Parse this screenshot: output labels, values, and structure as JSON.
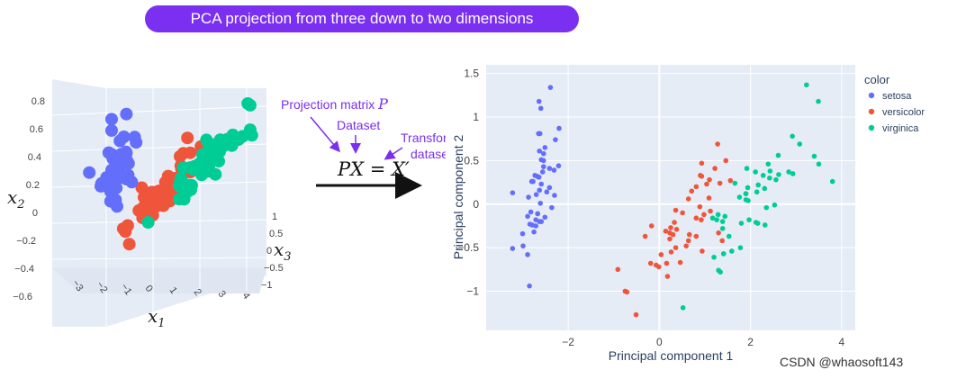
{
  "title": "PCA projection from three down to two dimensions",
  "left_plot": {
    "x1_label": "x",
    "x1_sub": "1",
    "x2_label": "x",
    "x2_sub": "2",
    "x3_label": "x",
    "x3_sub": "3",
    "x2_ticks": [
      "0.8",
      "0.6",
      "0.4",
      "0.2",
      "0",
      "−0.2",
      "−0.4",
      "−0.6"
    ],
    "x1_ticks": [
      "−3",
      "−2",
      "−1",
      "0",
      "1",
      "2",
      "3",
      "4"
    ],
    "x3_ticks": [
      "1",
      "0.5",
      "0",
      "−0.5",
      "−1"
    ],
    "colors": {
      "setosa": "#636efa",
      "versicolor": "#ef553b",
      "virginica": "#00cc96"
    }
  },
  "middle": {
    "projection_label": "Projection matrix ",
    "projection_var": "P",
    "dataset_label": "Dataset",
    "transformed_label_1": "Transformed",
    "transformed_label_2": "dataset",
    "equation": "PX = X′",
    "annotation_color": "#7b2ff0"
  },
  "chart_data": {
    "type": "scatter",
    "xlabel": "Principal component 1",
    "ylabel": "Principal component 2",
    "xlim": [
      -3.8,
      4.3
    ],
    "ylim": [
      -1.45,
      1.6
    ],
    "x_ticks": [
      "−2",
      "0",
      "2",
      "4"
    ],
    "y_ticks": [
      "1.5",
      "1",
      "0.5",
      "0",
      "−0.5",
      "−1"
    ],
    "legend_title": "color",
    "legend_position": "right",
    "series": [
      {
        "name": "setosa",
        "color": "#636efa",
        "points": [
          [
            -2.68,
            0.32
          ],
          [
            -2.71,
            -0.18
          ],
          [
            -2.89,
            -0.14
          ],
          [
            -2.75,
            -0.32
          ],
          [
            -2.73,
            0.33
          ],
          [
            -2.28,
            0.74
          ],
          [
            -2.82,
            -0.09
          ],
          [
            -2.63,
            0.16
          ],
          [
            -2.89,
            -0.58
          ],
          [
            -2.67,
            -0.11
          ],
          [
            -2.51,
            0.65
          ],
          [
            -2.61,
            0.01
          ],
          [
            -2.79,
            -0.24
          ],
          [
            -3.22,
            -0.51
          ],
          [
            -2.64,
            1.18
          ],
          [
            -2.39,
            1.34
          ],
          [
            -2.62,
            0.81
          ],
          [
            -2.65,
            0.31
          ],
          [
            -2.2,
            0.87
          ],
          [
            -2.59,
            0.51
          ],
          [
            -2.31,
            0.39
          ],
          [
            -2.54,
            0.43
          ],
          [
            -3.22,
            0.13
          ],
          [
            -2.3,
            0.1
          ],
          [
            -2.36,
            -0.04
          ],
          [
            -2.51,
            -0.15
          ],
          [
            -2.47,
            0.14
          ],
          [
            -2.56,
            0.37
          ],
          [
            -2.64,
            0.31
          ],
          [
            -2.63,
            -0.2
          ],
          [
            -2.59,
            -0.2
          ],
          [
            -2.41,
            0.41
          ],
          [
            -2.65,
            0.81
          ],
          [
            -2.6,
            1.1
          ],
          [
            -2.67,
            -0.11
          ],
          [
            -2.87,
            0.08
          ],
          [
            -2.63,
            0.61
          ],
          [
            -2.8,
            0.26
          ],
          [
            -2.99,
            -0.48
          ],
          [
            -2.59,
            0.23
          ],
          [
            -2.77,
            0.26
          ],
          [
            -2.85,
            -0.94
          ],
          [
            -3.0,
            -0.34
          ],
          [
            -2.41,
            0.19
          ],
          [
            -2.21,
            0.44
          ],
          [
            -2.71,
            -0.25
          ],
          [
            -2.54,
            0.5
          ],
          [
            -2.84,
            -0.23
          ],
          [
            -2.54,
            0.58
          ],
          [
            -2.7,
            0.11
          ]
        ]
      },
      {
        "name": "versicolor",
        "color": "#ef553b",
        "points": [
          [
            1.28,
            0.69
          ],
          [
            0.93,
            0.32
          ],
          [
            1.46,
            0.5
          ],
          [
            0.18,
            -0.83
          ],
          [
            1.09,
            0.07
          ],
          [
            0.64,
            -0.42
          ],
          [
            1.1,
            0.28
          ],
          [
            -0.75,
            -1.0
          ],
          [
            1.04,
            0.23
          ],
          [
            -0.01,
            -0.72
          ],
          [
            -0.51,
            -1.27
          ],
          [
            0.51,
            -0.1
          ],
          [
            0.26,
            -0.55
          ],
          [
            0.98,
            -0.12
          ],
          [
            -0.17,
            -0.25
          ],
          [
            0.93,
            0.47
          ],
          [
            0.66,
            -0.35
          ],
          [
            0.23,
            -0.33
          ],
          [
            0.94,
            -0.54
          ],
          [
            0.04,
            -0.58
          ],
          [
            1.12,
            -0.08
          ],
          [
            0.36,
            -0.07
          ],
          [
            1.3,
            -0.33
          ],
          [
            0.92,
            -0.18
          ],
          [
            0.71,
            0.15
          ],
          [
            0.9,
            0.33
          ],
          [
            1.33,
            0.24
          ],
          [
            1.56,
            0.27
          ],
          [
            0.81,
            -0.16
          ],
          [
            -0.31,
            -0.37
          ],
          [
            -0.07,
            -0.7
          ],
          [
            -0.19,
            -0.68
          ],
          [
            0.14,
            -0.31
          ],
          [
            1.38,
            -0.42
          ],
          [
            0.59,
            -0.48
          ],
          [
            0.81,
            0.2
          ],
          [
            1.22,
            0.41
          ],
          [
            0.81,
            -0.37
          ],
          [
            0.25,
            -0.27
          ],
          [
            0.16,
            -0.68
          ],
          [
            0.46,
            -0.67
          ],
          [
            0.89,
            -0.03
          ],
          [
            0.23,
            -0.4
          ],
          [
            -0.71,
            -1.01
          ],
          [
            0.36,
            -0.5
          ],
          [
            0.33,
            -0.21
          ],
          [
            0.38,
            -0.29
          ],
          [
            0.64,
            0.06
          ],
          [
            -0.91,
            -0.75
          ],
          [
            0.3,
            -0.35
          ]
        ]
      },
      {
        "name": "virginica",
        "color": "#00cc96",
        "points": [
          [
            2.53,
            -0.01
          ],
          [
            1.41,
            -0.57
          ],
          [
            2.62,
            0.34
          ],
          [
            1.97,
            -0.18
          ],
          [
            2.35,
            -0.04
          ],
          [
            3.4,
            0.55
          ],
          [
            0.52,
            -1.19
          ],
          [
            2.93,
            0.35
          ],
          [
            2.32,
            -0.24
          ],
          [
            2.92,
            0.78
          ],
          [
            1.66,
            0.24
          ],
          [
            1.8,
            -0.22
          ],
          [
            2.17,
            0.22
          ],
          [
            1.34,
            -0.78
          ],
          [
            1.59,
            -0.54
          ],
          [
            1.9,
            0.12
          ],
          [
            1.95,
            0.04
          ],
          [
            3.49,
            1.18
          ],
          [
            3.8,
            0.26
          ],
          [
            1.3,
            -0.76
          ],
          [
            2.43,
            0.38
          ],
          [
            1.2,
            -0.61
          ],
          [
            3.5,
            0.46
          ],
          [
            1.39,
            -0.2
          ],
          [
            2.28,
            0.33
          ],
          [
            2.61,
            0.56
          ],
          [
            1.26,
            -0.18
          ],
          [
            1.29,
            -0.12
          ],
          [
            2.12,
            -0.21
          ],
          [
            2.39,
            0.46
          ],
          [
            2.84,
            0.37
          ],
          [
            3.23,
            1.37
          ],
          [
            2.16,
            -0.22
          ],
          [
            1.44,
            -0.14
          ],
          [
            1.78,
            -0.5
          ],
          [
            3.08,
            0.69
          ],
          [
            2.14,
            0.14
          ],
          [
            1.9,
            0.05
          ],
          [
            1.17,
            -0.16
          ],
          [
            2.11,
            0.37
          ],
          [
            2.31,
            0.18
          ],
          [
            1.92,
            0.41
          ],
          [
            1.41,
            -0.57
          ],
          [
            2.56,
            0.28
          ],
          [
            2.42,
            0.3
          ],
          [
            1.94,
            0.19
          ],
          [
            1.53,
            -0.37
          ],
          [
            1.76,
            0.08
          ],
          [
            1.9,
            0.12
          ],
          [
            1.39,
            -0.28
          ]
        ]
      }
    ]
  },
  "watermark": "CSDN @whaosoft143"
}
